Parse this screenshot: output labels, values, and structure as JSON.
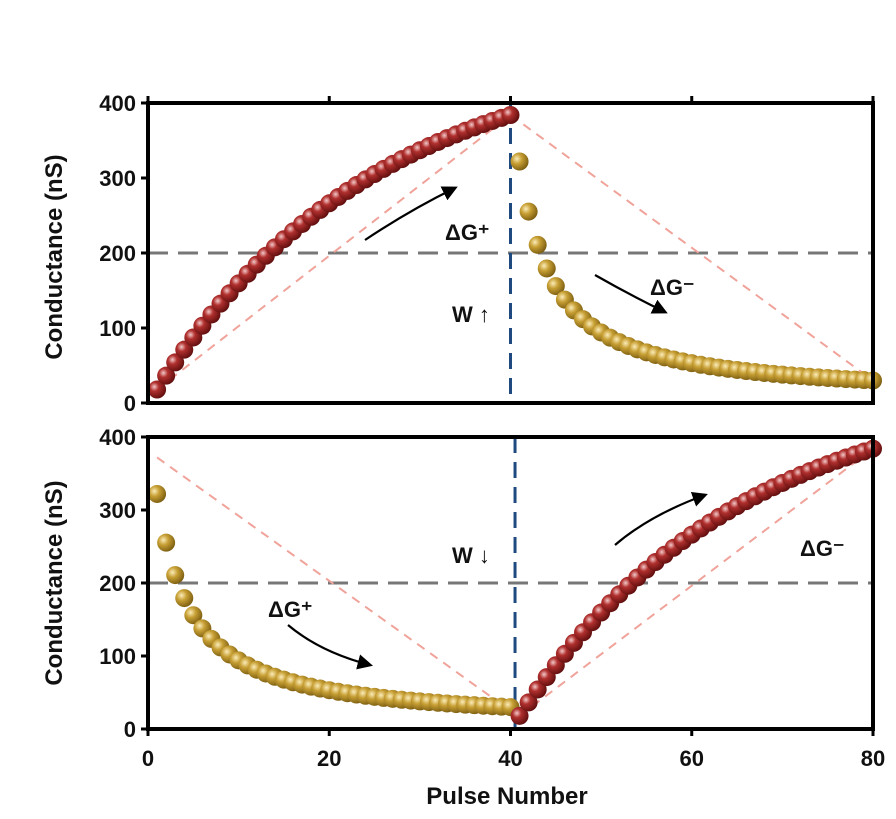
{
  "chart_data": [
    {
      "type": "scatter",
      "panel": "top",
      "ylabel": "Conductance (nS)",
      "xlim": [
        0,
        80
      ],
      "ylim": [
        0,
        400
      ],
      "yticks": [
        0,
        100,
        200,
        300,
        400
      ],
      "hline": 200,
      "vline": 40,
      "series": [
        {
          "name": "potentiation",
          "color": "#8b1a1a",
          "x_start": 1,
          "x_end": 40,
          "y_start": 18,
          "y_end": 384,
          "shape": "concave"
        },
        {
          "name": "depression",
          "color": "#b8932a",
          "x_start": 41,
          "x_end": 80,
          "y_start": 322,
          "y_end": 30,
          "shape": "decay"
        }
      ],
      "guides": [
        {
          "x": [
            1,
            40
          ],
          "y": [
            18,
            384
          ]
        },
        {
          "x": [
            40,
            80
          ],
          "y": [
            384,
            30
          ]
        }
      ],
      "annotations": {
        "dg_plus": "ΔG⁺",
        "dg_minus": "ΔG⁻",
        "w_label": "W ↑"
      }
    },
    {
      "type": "scatter",
      "panel": "bottom",
      "ylabel": "Conductance (nS)",
      "xlabel": "Pulse Number",
      "xlim": [
        0,
        80
      ],
      "ylim": [
        0,
        400
      ],
      "xticks": [
        0,
        20,
        40,
        60,
        80
      ],
      "yticks": [
        0,
        100,
        200,
        300,
        400
      ],
      "hline": 200,
      "vline": 40.5,
      "series": [
        {
          "name": "depression",
          "color": "#b8932a",
          "x_start": 1,
          "x_end": 40,
          "y_start": 322,
          "y_end": 30,
          "shape": "decay"
        },
        {
          "name": "potentiation",
          "color": "#8b1a1a",
          "x_start": 41,
          "x_end": 80,
          "y_start": 18,
          "y_end": 384,
          "shape": "concave"
        }
      ],
      "guides": [
        {
          "x": [
            1,
            40
          ],
          "y": [
            372,
            25
          ]
        },
        {
          "x": [
            41,
            80
          ],
          "y": [
            18,
            384
          ]
        }
      ],
      "annotations": {
        "dg_plus": "ΔG⁺",
        "dg_minus": "ΔG⁻",
        "w_label": "W ↓"
      }
    }
  ]
}
